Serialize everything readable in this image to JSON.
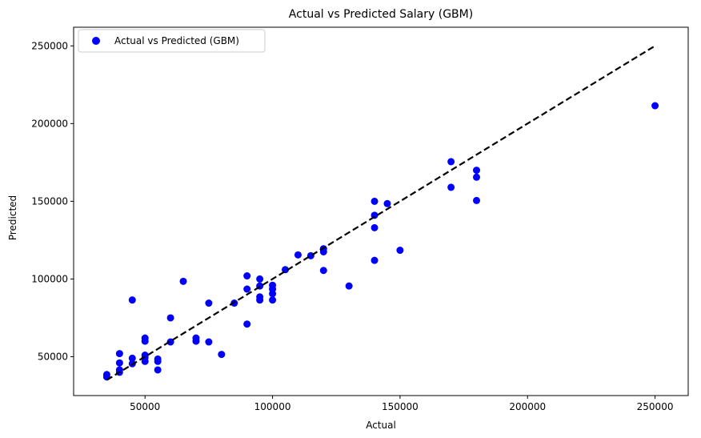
{
  "chart_data": {
    "type": "scatter",
    "title": "Actual vs Predicted Salary (GBM)",
    "xlabel": "Actual",
    "ylabel": "Predicted",
    "xlim": [
      22000,
      263000
    ],
    "ylim": [
      25000,
      262000
    ],
    "xticks": [
      50000,
      100000,
      150000,
      200000,
      250000
    ],
    "yticks": [
      50000,
      100000,
      150000,
      200000,
      250000
    ],
    "grid": false,
    "legend_position": "top-left",
    "colors": {
      "points": "#0000ff",
      "line": "#000000"
    },
    "series": [
      {
        "name": "Actual vs Predicted (GBM)",
        "kind": "scatter",
        "points": [
          [
            35000,
            37000
          ],
          [
            35000,
            38500
          ],
          [
            40000,
            40000
          ],
          [
            40000,
            41500
          ],
          [
            40000,
            46000
          ],
          [
            40000,
            52000
          ],
          [
            45000,
            45500
          ],
          [
            45000,
            49000
          ],
          [
            45000,
            86500
          ],
          [
            50000,
            47000
          ],
          [
            50000,
            49500
          ],
          [
            50000,
            51000
          ],
          [
            50000,
            60000
          ],
          [
            50000,
            62000
          ],
          [
            55000,
            41500
          ],
          [
            55000,
            47000
          ],
          [
            55000,
            48500
          ],
          [
            60000,
            59500
          ],
          [
            60000,
            75000
          ],
          [
            65000,
            98500
          ],
          [
            70000,
            60000
          ],
          [
            70000,
            62000
          ],
          [
            75000,
            59500
          ],
          [
            75000,
            84500
          ],
          [
            80000,
            51500
          ],
          [
            85000,
            84500
          ],
          [
            90000,
            71000
          ],
          [
            90000,
            93500
          ],
          [
            90000,
            102000
          ],
          [
            95000,
            86500
          ],
          [
            95000,
            88500
          ],
          [
            95000,
            95500
          ],
          [
            95000,
            100000
          ],
          [
            100000,
            86500
          ],
          [
            100000,
            90500
          ],
          [
            100000,
            93500
          ],
          [
            100000,
            96000
          ],
          [
            105000,
            106000
          ],
          [
            110000,
            115500
          ],
          [
            115000,
            115000
          ],
          [
            120000,
            105500
          ],
          [
            120000,
            117500
          ],
          [
            120000,
            119500
          ],
          [
            130000,
            95500
          ],
          [
            140000,
            112000
          ],
          [
            140000,
            133000
          ],
          [
            140000,
            141000
          ],
          [
            140000,
            150000
          ],
          [
            145000,
            148500
          ],
          [
            150000,
            118500
          ],
          [
            170000,
            159000
          ],
          [
            170000,
            175500
          ],
          [
            180000,
            150500
          ],
          [
            180000,
            165500
          ],
          [
            180000,
            170000
          ],
          [
            250000,
            211500
          ]
        ]
      },
      {
        "kind": "reference-line",
        "style": "dashed",
        "points": [
          [
            35000,
            35000
          ],
          [
            250000,
            250000
          ]
        ]
      }
    ]
  }
}
